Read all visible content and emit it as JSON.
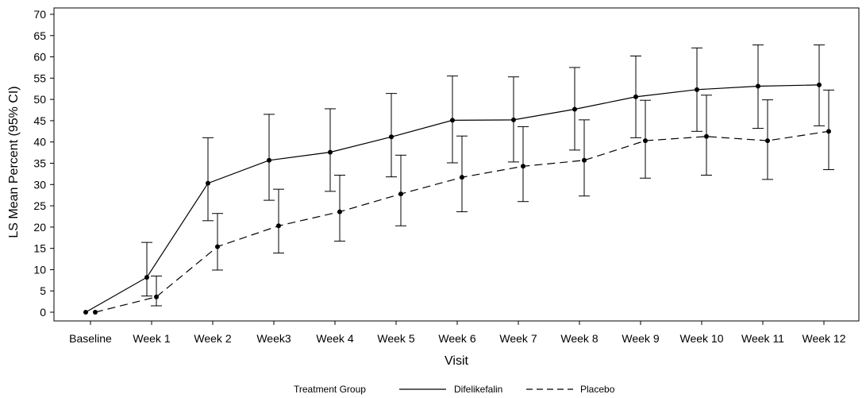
{
  "chart_data": {
    "type": "line",
    "title": "",
    "xlabel": "Visit",
    "ylabel": "LS Mean Percent (95% CI)",
    "ylim": [
      0,
      70
    ],
    "yticks": [
      0,
      5,
      10,
      15,
      20,
      25,
      30,
      35,
      40,
      45,
      50,
      55,
      60,
      65,
      70
    ],
    "categories": [
      "Baseline",
      "Week 1",
      "Week 2",
      "Week3",
      "Week 4",
      "Week 5",
      "Week 6",
      "Week 7",
      "Week 8",
      "Week 9",
      "Week 10",
      "Week 11",
      "Week 12"
    ],
    "grid": false,
    "legend": {
      "position": "bottom",
      "title": "Treatment Group"
    },
    "series": [
      {
        "name": "Difelikefalin",
        "line_style": "solid",
        "color": "#000000",
        "values": [
          0,
          8.2,
          30.3,
          35.7,
          37.6,
          41.2,
          45.1,
          45.2,
          47.7,
          50.6,
          52.3,
          53.1,
          53.4
        ],
        "ci_lower": [
          null,
          3.8,
          21.5,
          26.3,
          28.4,
          31.8,
          35.1,
          35.3,
          38.1,
          41.0,
          42.5,
          43.2,
          43.8
        ],
        "ci_upper": [
          null,
          16.4,
          41.0,
          46.5,
          47.8,
          51.4,
          55.5,
          55.3,
          57.5,
          60.2,
          62.1,
          62.8,
          62.8
        ]
      },
      {
        "name": "Placebo",
        "line_style": "dashed",
        "color": "#000000",
        "values": [
          0,
          3.6,
          15.4,
          20.3,
          23.6,
          27.8,
          31.7,
          34.3,
          35.7,
          40.3,
          41.3,
          40.3,
          42.5
        ],
        "ci_lower": [
          null,
          1.5,
          9.9,
          13.9,
          16.7,
          20.3,
          23.6,
          26.0,
          27.3,
          31.5,
          32.2,
          31.2,
          33.5
        ],
        "ci_upper": [
          null,
          8.5,
          23.2,
          28.9,
          32.2,
          36.9,
          41.4,
          43.6,
          45.2,
          49.8,
          51.0,
          49.9,
          52.2
        ]
      }
    ]
  }
}
